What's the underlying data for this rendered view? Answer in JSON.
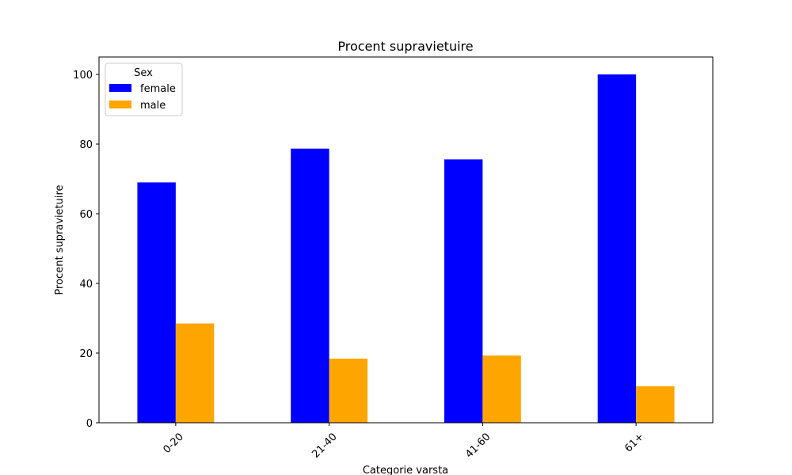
{
  "chart_data": {
    "type": "bar",
    "title": "Procent supravietuire",
    "xlabel": "Categorie varsta",
    "ylabel": "Procent supravietuire",
    "categories": [
      "0-20",
      "21-40",
      "41-60",
      "61+"
    ],
    "series": [
      {
        "name": "female",
        "values": [
          69.0,
          78.7,
          75.6,
          100.0
        ],
        "color": "#0000ff"
      },
      {
        "name": "male",
        "values": [
          28.5,
          18.4,
          19.3,
          10.5
        ],
        "color": "#ffa500"
      }
    ],
    "ylim": [
      0,
      105
    ],
    "yticks": [
      0,
      20,
      40,
      60,
      80,
      100
    ],
    "grid": false,
    "legend": {
      "title": "Sex",
      "placement": "top-left"
    }
  }
}
